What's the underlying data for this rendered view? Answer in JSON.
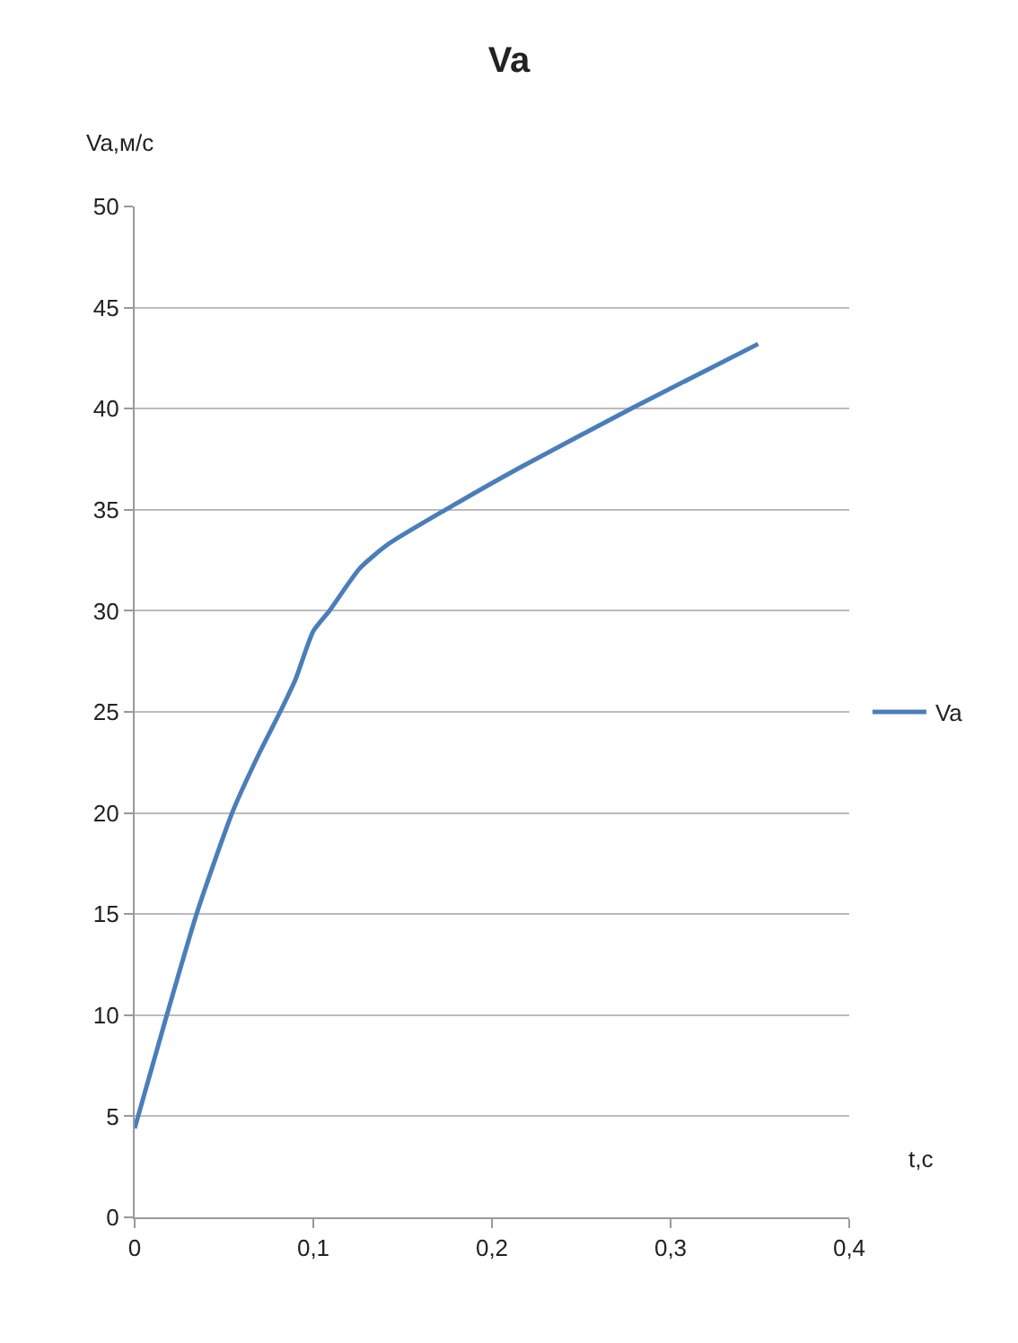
{
  "chart_data": {
    "type": "line",
    "title": "Va",
    "xlabel": "t,c",
    "ylabel": "Va,м/с",
    "x": [
      0,
      0.018,
      0.035,
      0.055,
      0.07,
      0.082,
      0.09,
      0.1,
      0.109,
      0.126,
      0.142,
      0.176,
      0.216,
      0.28,
      0.349
    ],
    "series": [
      {
        "name": "Va",
        "color": "#4a7ebb",
        "values": [
          4.4,
          10.0,
          15.1,
          20.1,
          23.0,
          25.1,
          26.6,
          29.0,
          30.0,
          32.1,
          33.3,
          35.1,
          37.1,
          40.1,
          43.2
        ]
      }
    ],
    "xlim": [
      0,
      0.4
    ],
    "xticks": [
      {
        "value": 0,
        "label": "0"
      },
      {
        "value": 0.1,
        "label": "0,1"
      },
      {
        "value": 0.2,
        "label": "0,2"
      },
      {
        "value": 0.3,
        "label": "0,3"
      },
      {
        "value": 0.4,
        "label": "0,4"
      }
    ],
    "ylim": [
      0,
      50
    ],
    "yticks": [
      0,
      5,
      10,
      15,
      20,
      25,
      30,
      35,
      40,
      45,
      50
    ],
    "grid": "y",
    "legend": "right",
    "marker": "none",
    "line_style": "solid"
  }
}
